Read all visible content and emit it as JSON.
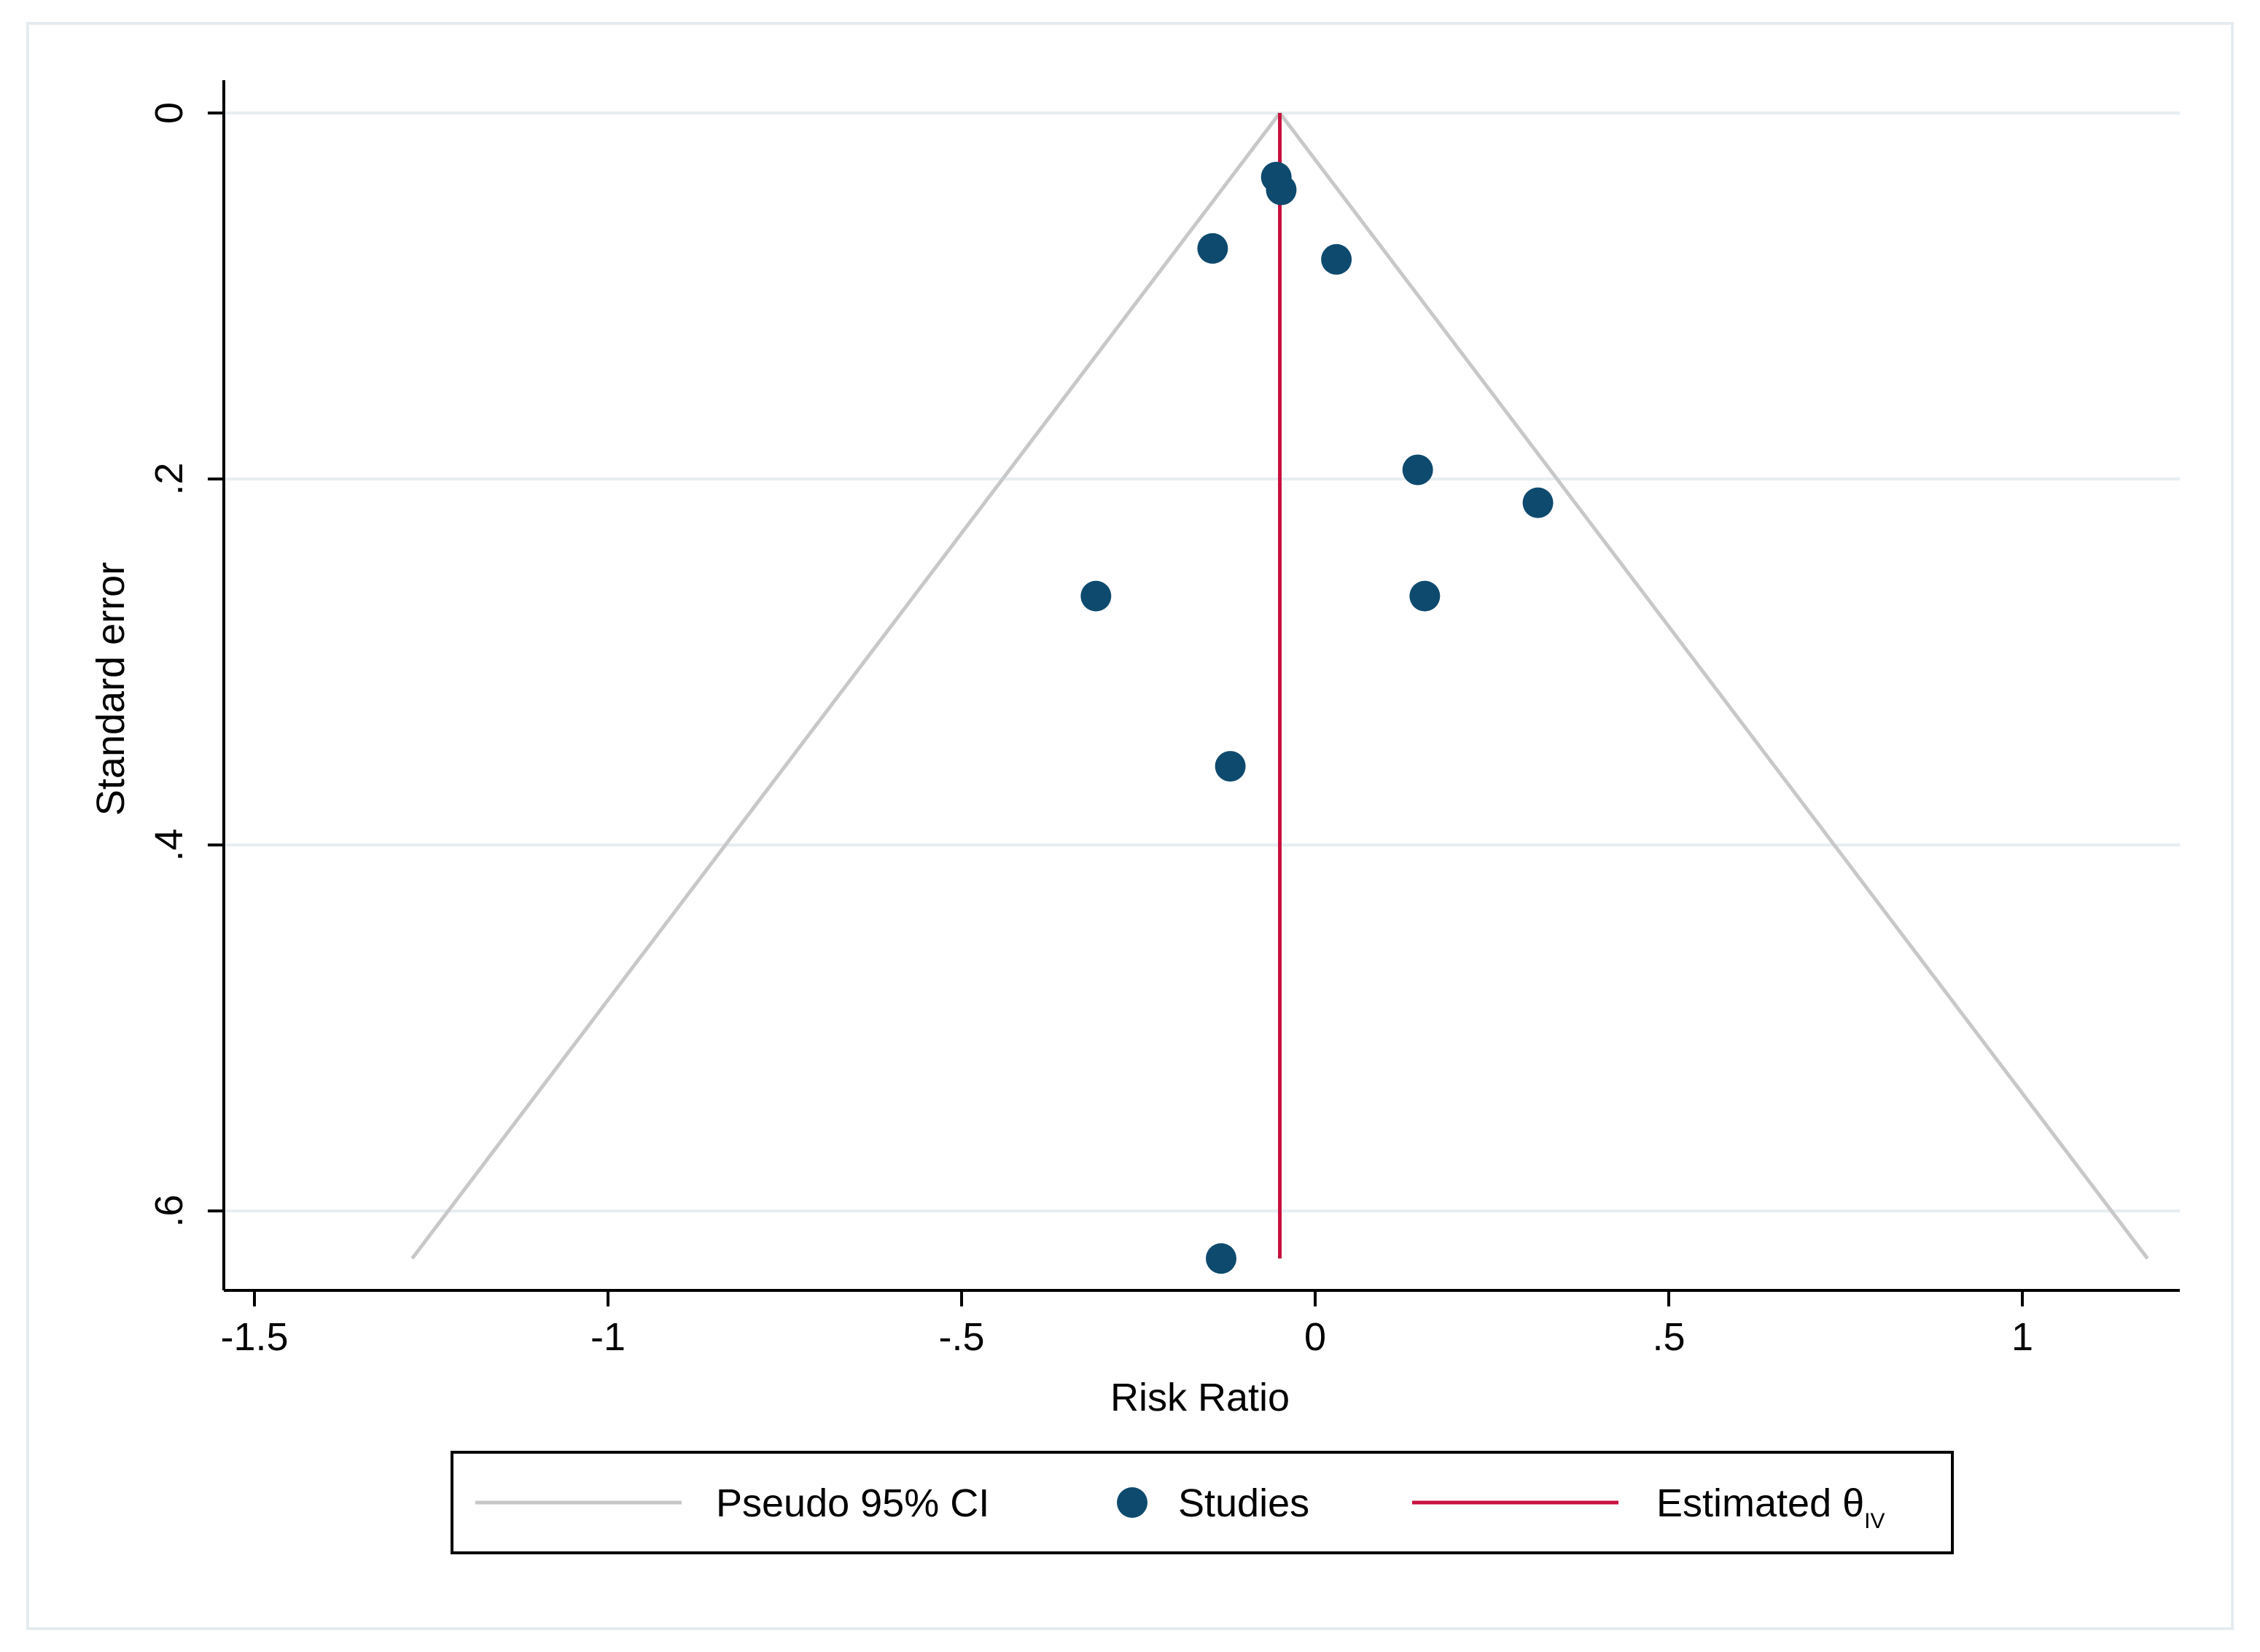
{
  "chart_data": {
    "type": "scatter",
    "subtype": "funnel-plot",
    "xlabel": "Risk Ratio",
    "ylabel": "Standard error",
    "xlim": [
      -1.55,
      1.23
    ],
    "ylim": [
      0,
      0.645
    ],
    "y_reversed": true,
    "xticks": [
      -1.5,
      -1,
      -0.5,
      0,
      0.5,
      1
    ],
    "xtick_labels": [
      "-1.5",
      "-1",
      "-.5",
      "0",
      ".5",
      "1"
    ],
    "yticks": [
      0,
      0.2,
      0.4,
      0.6
    ],
    "ytick_labels": [
      "0",
      ".2",
      ".4",
      ".6"
    ],
    "grid": "horizontal",
    "estimate": -0.05,
    "ci_max_se": 0.626,
    "ci_multiplier": 1.96,
    "series": [
      {
        "name": "Studies",
        "color": "#0e4a6e",
        "points": [
          {
            "x": -0.055,
            "y": 0.035
          },
          {
            "x": -0.048,
            "y": 0.042
          },
          {
            "x": -0.145,
            "y": 0.074
          },
          {
            "x": 0.03,
            "y": 0.08
          },
          {
            "x": 0.145,
            "y": 0.195
          },
          {
            "x": 0.315,
            "y": 0.213
          },
          {
            "x": -0.31,
            "y": 0.264
          },
          {
            "x": 0.155,
            "y": 0.264
          },
          {
            "x": -0.12,
            "y": 0.357
          },
          {
            "x": -0.133,
            "y": 0.626
          }
        ]
      }
    ],
    "legend": {
      "placement": "bottom",
      "items": [
        {
          "label": "Pseudo 95% CI",
          "kind": "line",
          "color": "#c8c8c8"
        },
        {
          "label": "Studies",
          "kind": "marker",
          "color": "#0e4a6e"
        },
        {
          "label": "Estimated θ",
          "subscript": "IV",
          "kind": "line",
          "color": "#c8103e"
        }
      ]
    },
    "colors": {
      "grid": "#e6eef2",
      "ci": "#c8c8c8",
      "estimate": "#c8103e",
      "marker": "#0e4a6e"
    }
  }
}
